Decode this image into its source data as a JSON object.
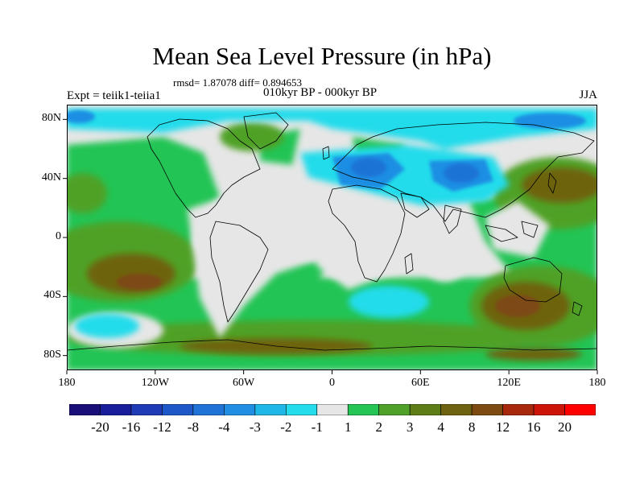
{
  "header": {
    "title": "Mean Sea Level Pressure (in hPa)",
    "stats": "rmsd= 1.87078 diff= 0.894653",
    "experiment": "Expt = teiik1-teiia1",
    "period": "010kyr BP - 000kyr BP",
    "season": "JJA"
  },
  "axes": {
    "lat_labels": [
      "80N",
      "40N",
      "0",
      "40S",
      "80S"
    ],
    "lat_values": [
      80,
      40,
      0,
      -40,
      -80
    ],
    "lon_labels": [
      "180",
      "120W",
      "60W",
      "0",
      "60E",
      "120E",
      "180"
    ],
    "lon_values": [
      -180,
      -120,
      -60,
      0,
      60,
      120,
      180
    ]
  },
  "colorbar": {
    "labels": [
      "-20",
      "-16",
      "-12",
      "-8",
      "-4",
      "-3",
      "-2",
      "-1",
      "1",
      "2",
      "3",
      "4",
      "8",
      "12",
      "16",
      "20"
    ],
    "colors": [
      "#1a0f78",
      "#1a1e9b",
      "#1f3bb5",
      "#1e58c8",
      "#1f73d6",
      "#1f8ee3",
      "#1fb7e6",
      "#24dceb",
      "#e6e6e6",
      "#24c455",
      "#4fa128",
      "#5e7d16",
      "#6e6310",
      "#7d4a12",
      "#a8280e",
      "#cc1408",
      "#ff0000"
    ]
  },
  "map": {
    "background": "#e6e6e6",
    "lat_range": [
      -90,
      90
    ],
    "lon_range": [
      -180,
      180
    ]
  }
}
